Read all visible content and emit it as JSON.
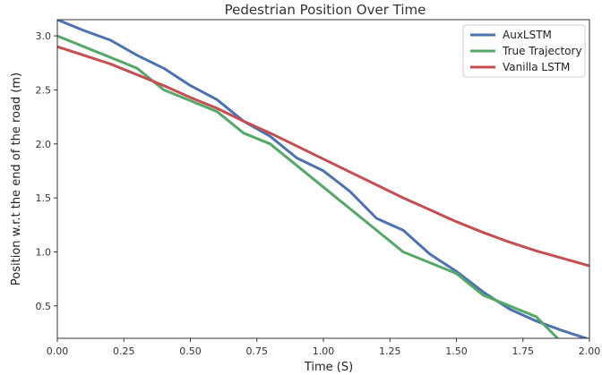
{
  "chart_data": {
    "type": "line",
    "title": "Pedestrian Position Over Time",
    "xlabel": "Time (S)",
    "ylabel": "Position w.r.t the end of the road (m)",
    "xlim": [
      0,
      2.0
    ],
    "ylim": [
      0.2,
      3.15
    ],
    "x_ticks": [
      0.0,
      0.25,
      0.5,
      0.75,
      1.0,
      1.25,
      1.5,
      1.75,
      2.0
    ],
    "x_tick_labels": [
      "0.00",
      "0.25",
      "0.50",
      "0.75",
      "1.00",
      "1.25",
      "1.50",
      "1.75",
      "2.00"
    ],
    "y_ticks": [
      0.5,
      1.0,
      1.5,
      2.0,
      2.5,
      3.0
    ],
    "y_tick_labels": [
      "0.5",
      "1.0",
      "1.5",
      "2.0",
      "2.5",
      "3.0"
    ],
    "grid": false,
    "legend_position": "top-right",
    "series": [
      {
        "name": "AuxLSTM",
        "color": "#4c72b0",
        "x": [
          0.0,
          0.1,
          0.2,
          0.3,
          0.4,
          0.5,
          0.6,
          0.7,
          0.8,
          0.9,
          1.0,
          1.1,
          1.2,
          1.3,
          1.4,
          1.5,
          1.6,
          1.7,
          1.8,
          1.9,
          2.0
        ],
        "y": [
          3.15,
          3.05,
          2.96,
          2.82,
          2.7,
          2.54,
          2.41,
          2.21,
          2.07,
          1.87,
          1.75,
          1.56,
          1.31,
          1.2,
          0.98,
          0.82,
          0.63,
          0.47,
          0.36,
          0.27,
          0.19
        ]
      },
      {
        "name": "True Trajectory",
        "color": "#55a868",
        "x": [
          0.0,
          0.1,
          0.2,
          0.3,
          0.4,
          0.5,
          0.6,
          0.7,
          0.8,
          0.9,
          1.0,
          1.1,
          1.2,
          1.3,
          1.4,
          1.5,
          1.6,
          1.7,
          1.8,
          1.9
        ],
        "y": [
          3.0,
          2.9,
          2.8,
          2.7,
          2.5,
          2.4,
          2.3,
          2.1,
          2.0,
          1.8,
          1.6,
          1.4,
          1.2,
          1.0,
          0.9,
          0.8,
          0.6,
          0.5,
          0.4,
          0.15
        ]
      },
      {
        "name": "Vanilla LSTM",
        "color": "#c44e52",
        "x": [
          0.0,
          0.1,
          0.2,
          0.3,
          0.4,
          0.5,
          0.6,
          0.7,
          0.8,
          0.9,
          1.0,
          1.1,
          1.2,
          1.3,
          1.4,
          1.5,
          1.6,
          1.7,
          1.8,
          1.9,
          2.0
        ],
        "y": [
          2.9,
          2.82,
          2.74,
          2.64,
          2.54,
          2.43,
          2.33,
          2.21,
          2.1,
          1.98,
          1.86,
          1.74,
          1.62,
          1.5,
          1.39,
          1.28,
          1.18,
          1.09,
          1.01,
          0.94,
          0.87
        ]
      }
    ]
  }
}
